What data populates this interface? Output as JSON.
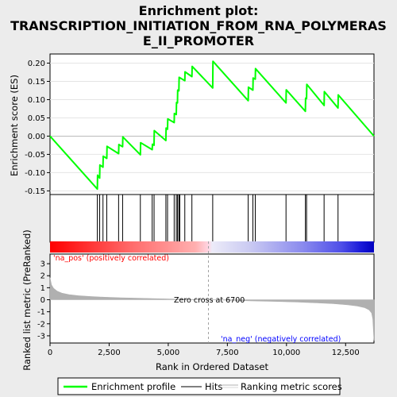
{
  "chart_data": {
    "type": "line",
    "title_line1": "Enrichment plot:",
    "title_line2": "TRANSCRIPTION_INITIATION_FROM_RNA_POLYMERAS",
    "title_line3": "E_II_PROMOTER",
    "es_panel": {
      "ylabel": "Enrichment score (ES)",
      "ylim": [
        -0.16,
        0.225
      ],
      "yticks": [
        "0.20",
        "0.15",
        "0.10",
        "0.05",
        "0.00",
        "-0.05",
        "-0.10",
        "-0.15"
      ],
      "ytick_values": [
        0.2,
        0.15,
        0.1,
        0.05,
        0.0,
        -0.05,
        -0.1,
        -0.15
      ],
      "profile_x": [
        0,
        2000,
        2010,
        2100,
        2110,
        2240,
        2250,
        2400,
        2410,
        2900,
        2910,
        3070,
        3080,
        3820,
        3830,
        4320,
        4330,
        4400,
        4410,
        4900,
        4910,
        4970,
        4980,
        5250,
        5260,
        5340,
        5350,
        5390,
        5400,
        5450,
        5460,
        5700,
        5710,
        6000,
        6010,
        6880,
        6890,
        8380,
        8390,
        8580,
        8590,
        8680,
        8690,
        9980,
        9990,
        10800,
        10810,
        10850,
        10860,
        11590,
        11600,
        12180,
        12190,
        13700
      ],
      "profile_y": [
        0.0,
        -0.145,
        -0.107,
        -0.115,
        -0.079,
        -0.085,
        -0.055,
        -0.061,
        -0.028,
        -0.048,
        -0.023,
        -0.029,
        -0.002,
        -0.051,
        -0.018,
        -0.037,
        -0.022,
        -0.025,
        0.015,
        -0.012,
        0.022,
        0.019,
        0.047,
        0.037,
        0.062,
        0.059,
        0.092,
        0.091,
        0.126,
        0.124,
        0.161,
        0.152,
        0.176,
        0.163,
        0.191,
        0.132,
        0.205,
        0.097,
        0.134,
        0.126,
        0.159,
        0.156,
        0.185,
        0.091,
        0.127,
        0.068,
        0.104,
        0.103,
        0.142,
        0.084,
        0.122,
        0.077,
        0.113,
        0.0
      ]
    },
    "hits": [
      2000,
      2100,
      2240,
      2400,
      2900,
      3070,
      3820,
      4320,
      4400,
      4900,
      4970,
      5250,
      5340,
      5390,
      5450,
      5470,
      5490,
      5700,
      6000,
      6880,
      8380,
      8580,
      8680,
      9980,
      10800,
      10850,
      11590,
      12180
    ],
    "rank_panel": {
      "ylabel": "Ranked list metric (PreRanked)",
      "ylim": [
        -3.6,
        3.8
      ],
      "yticks": [
        "3",
        "2",
        "1",
        "0",
        "-1",
        "-2",
        "-3"
      ],
      "ytick_values": [
        3,
        2,
        1,
        0,
        -1,
        -2,
        -3
      ],
      "metric_x": [
        0,
        60,
        150,
        300,
        500,
        800,
        1200,
        1700,
        2300,
        3000,
        4000,
        5000,
        6000,
        6700,
        7500,
        8500,
        9500,
        10500,
        11300,
        12000,
        12600,
        13000,
        13300,
        13500,
        13600,
        13650,
        13700
      ],
      "metric_y": [
        1.85,
        1.25,
        0.95,
        0.72,
        0.55,
        0.43,
        0.34,
        0.27,
        0.21,
        0.16,
        0.11,
        0.07,
        0.03,
        0.0,
        -0.04,
        -0.09,
        -0.14,
        -0.2,
        -0.26,
        -0.33,
        -0.42,
        -0.52,
        -0.65,
        -0.85,
        -1.1,
        -1.6,
        -3.4
      ],
      "pos_label": "'na_pos' (positively correlated)",
      "neg_label": "'na_neg' (negatively correlated)",
      "zero_cross_label": "Zero cross at 6700",
      "zero_cross": 6700
    },
    "xaxis": {
      "xlabel": "Rank in Ordered Dataset",
      "xlim": [
        0,
        13700
      ],
      "xticks": [
        "0",
        "2,500",
        "5,000",
        "7,500",
        "10,000",
        "12,500"
      ],
      "xtick_values": [
        0,
        2500,
        5000,
        7500,
        10000,
        12500
      ]
    },
    "legend": {
      "placement": "bottom",
      "items": [
        "Enrichment profile",
        "Hits",
        "Ranking metric scores"
      ]
    },
    "colors": {
      "profile": "#00ff00",
      "hits": "#000000",
      "metric": "#b0b0b0",
      "pos_label": "#ff0000",
      "neg_label": "#0000ff",
      "zero_line": "#a0a0a0"
    }
  }
}
